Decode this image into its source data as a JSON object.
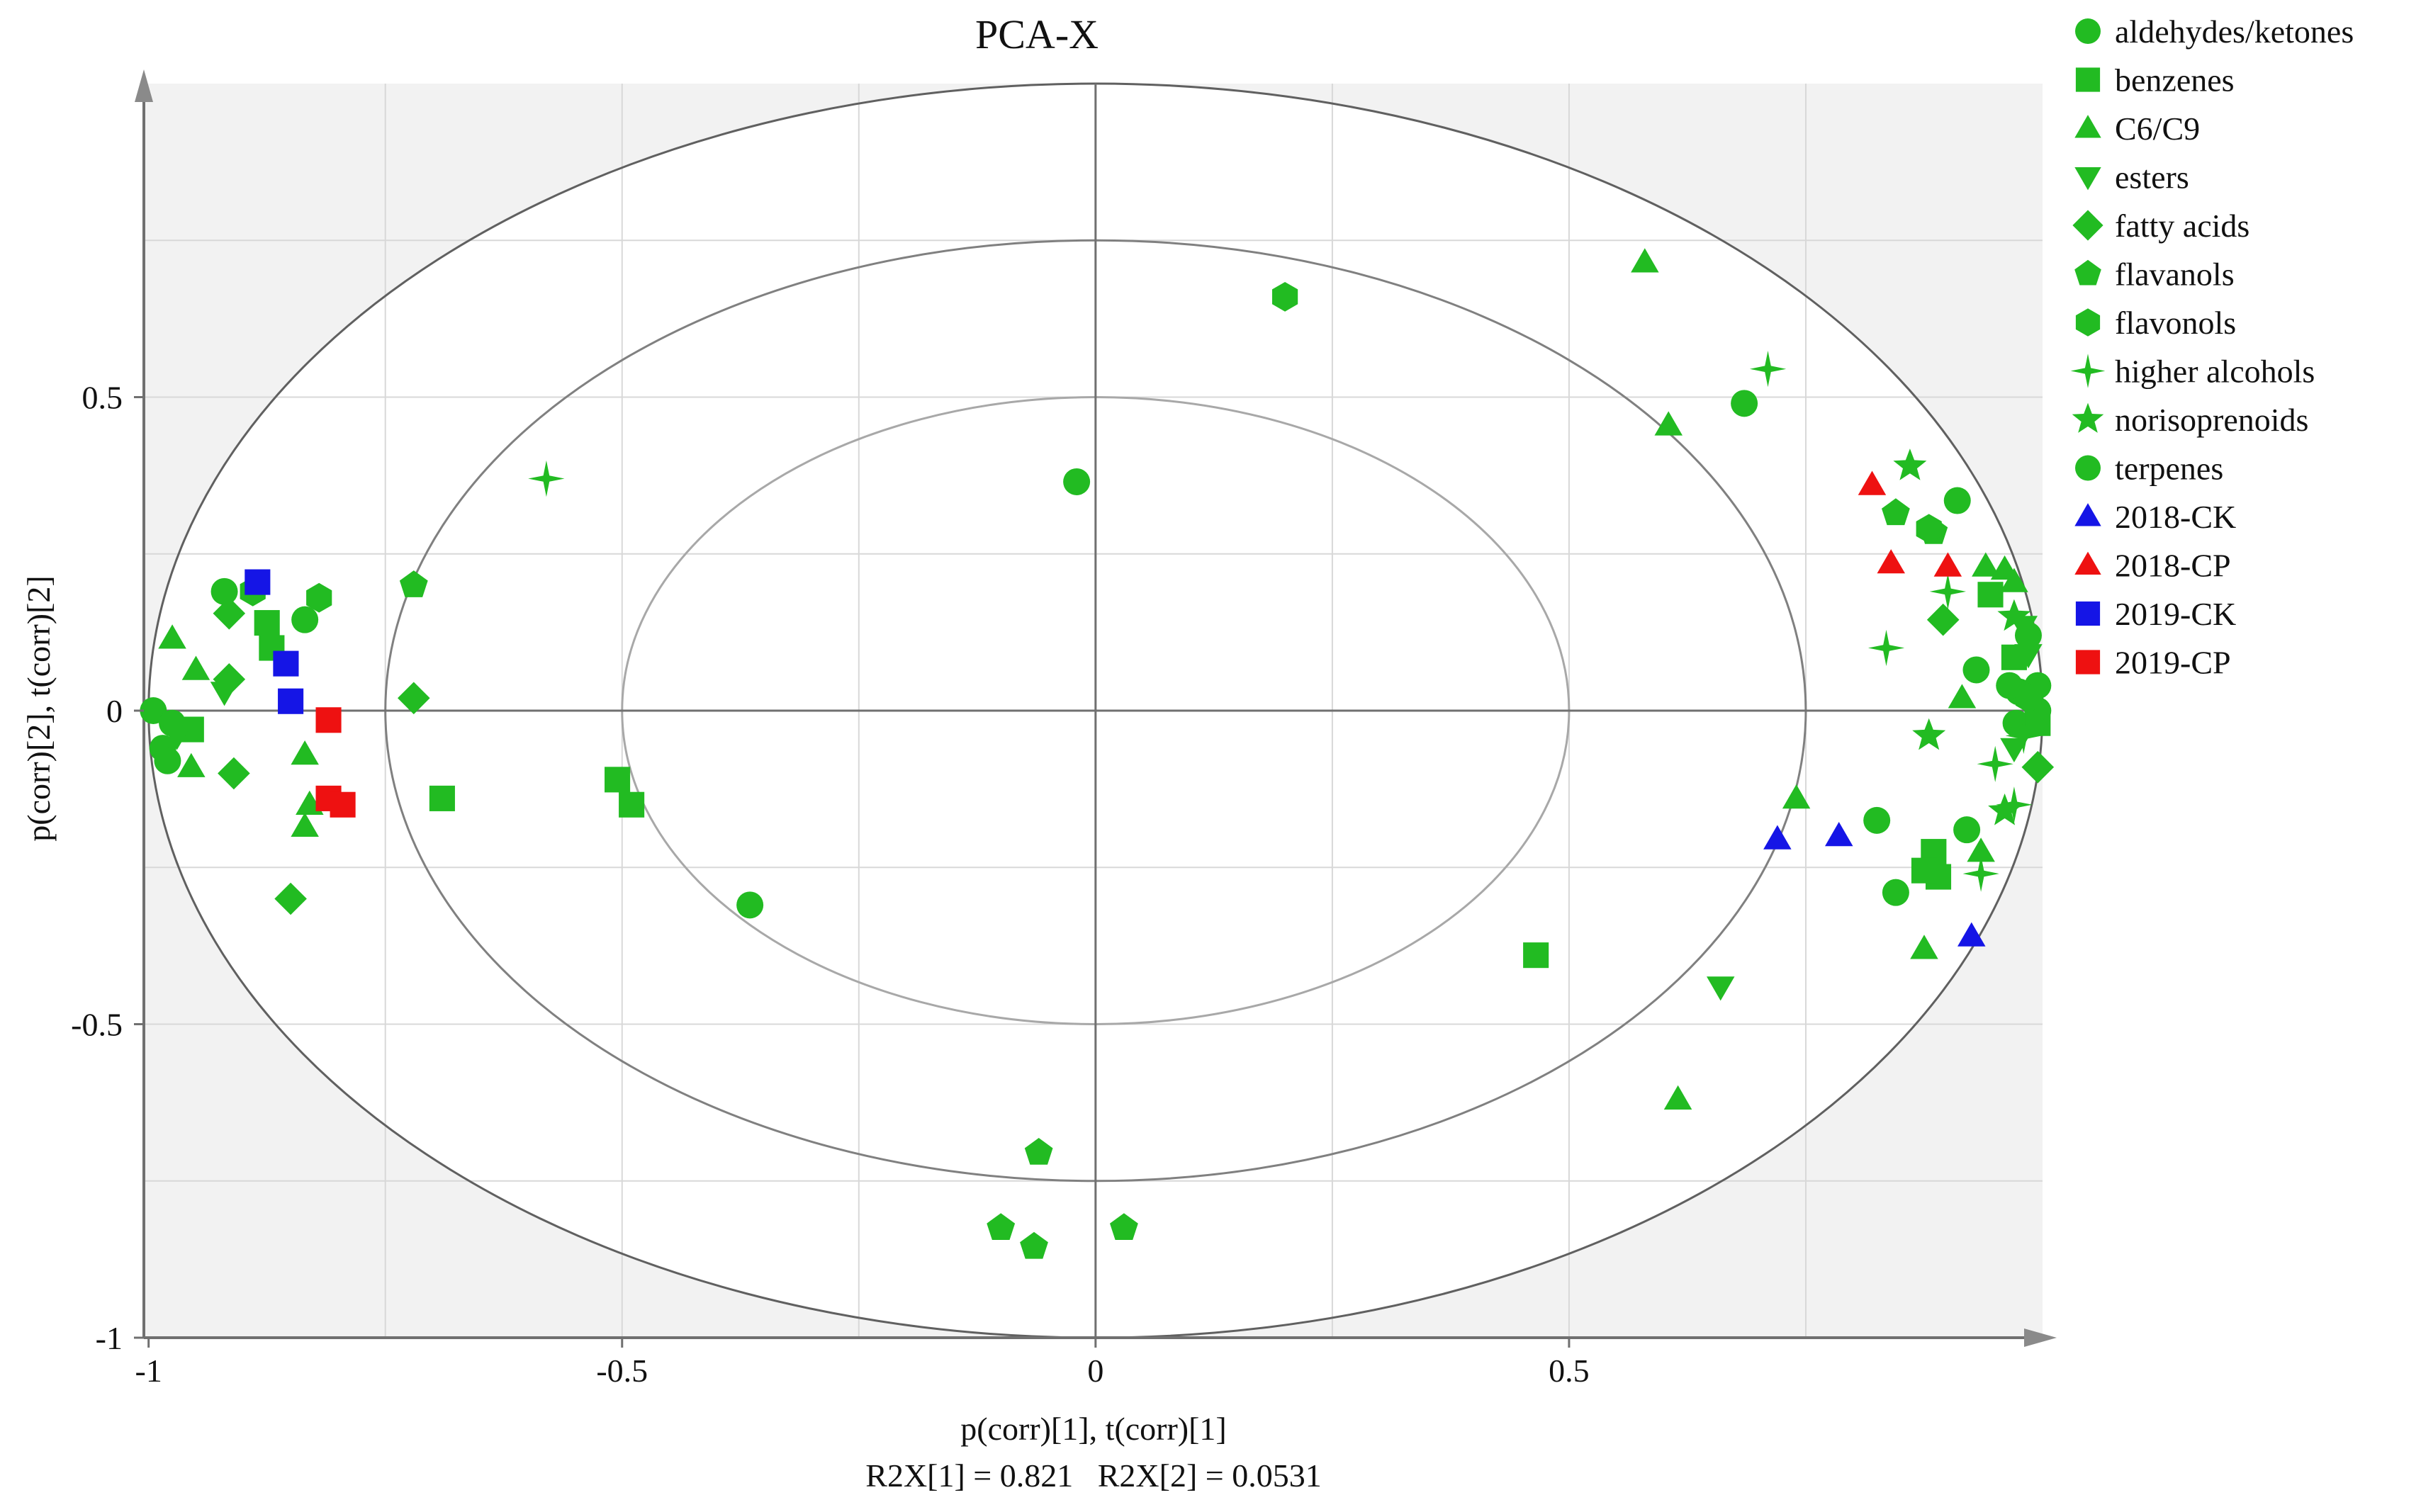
{
  "chart_data": {
    "type": "scatter",
    "title": "PCA-X",
    "xlabel": "p(corr)[1], t(corr)[1]",
    "ylabel": "p(corr)[2], t(corr)[2]",
    "footnote": "R2X[1] = 0.821   R2X[2] = 0.0531",
    "xlim": [
      -1.005,
      1.0
    ],
    "ylim": [
      -1.0,
      1.0
    ],
    "xticks": [
      -1,
      -0.5,
      0,
      0.5
    ],
    "xtick_labels": [
      "-1",
      "-0.5",
      "0",
      "0.5"
    ],
    "yticks": [
      -1,
      -0.5,
      0,
      0.5
    ],
    "ytick_labels": [
      "-1",
      "-0.5",
      "0",
      "0.5"
    ],
    "grid_x": [
      -0.75,
      -0.5,
      -0.25,
      0.25,
      0.5,
      0.75
    ],
    "grid_y": [
      -0.75,
      -0.5,
      -0.25,
      0.25,
      0.5,
      0.75
    ],
    "ellipses": [
      {
        "rx": 1.0,
        "ry": 1.0,
        "color": "#606060"
      },
      {
        "rx": 0.75,
        "ry": 0.75,
        "color": "#808080"
      },
      {
        "rx": 0.5,
        "ry": 0.5,
        "color": "#a8a8a8"
      }
    ],
    "colors": {
      "variables": "#22bb22",
      "ck": "#1515e6",
      "cp": "#ee1111",
      "axis": "#707070",
      "plot_bg": "#f2f2f2"
    },
    "series": [
      {
        "name": "aldehydes/ketones",
        "marker": "circle",
        "color": "#22bb22",
        "points": [
          [
            -0.985,
            -0.06
          ],
          [
            -0.98,
            -0.08
          ],
          [
            -0.835,
            0.145
          ],
          [
            -0.92,
            0.19
          ],
          [
            0.685,
            0.49
          ],
          [
            0.91,
            0.335
          ],
          [
            0.93,
            0.065
          ],
          [
            0.92,
            -0.19
          ],
          [
            0.985,
            0.12
          ],
          [
            0.975,
            0.03
          ],
          [
            0.972,
            -0.02
          ],
          [
            0.995,
            0.04
          ],
          [
            0.995,
            0.0
          ],
          [
            -0.995,
            0.0
          ],
          [
            -0.975,
            -0.02
          ]
        ]
      },
      {
        "name": "benzenes",
        "marker": "square",
        "color": "#22bb22",
        "points": [
          [
            -0.955,
            -0.03
          ],
          [
            -0.875,
            0.14
          ],
          [
            -0.87,
            0.1
          ],
          [
            -0.69,
            -0.14
          ],
          [
            -0.505,
            -0.11
          ],
          [
            -0.49,
            -0.15
          ],
          [
            0.465,
            -0.39
          ],
          [
            0.885,
            -0.225
          ],
          [
            0.89,
            -0.265
          ],
          [
            0.875,
            -0.255
          ],
          [
            0.945,
            0.185
          ],
          [
            0.97,
            0.085
          ],
          [
            0.995,
            -0.02
          ]
        ]
      },
      {
        "name": "C6/C9",
        "marker": "triangle-up",
        "color": "#22bb22",
        "points": [
          [
            -0.975,
            0.115
          ],
          [
            -0.955,
            -0.09
          ],
          [
            -0.95,
            0.065
          ],
          [
            -0.835,
            -0.07
          ],
          [
            -0.835,
            -0.185
          ],
          [
            -0.83,
            -0.15
          ],
          [
            0.58,
            0.715
          ],
          [
            0.605,
            0.455
          ],
          [
            0.615,
            -0.62
          ],
          [
            0.74,
            -0.14
          ],
          [
            0.875,
            -0.38
          ],
          [
            0.915,
            0.02
          ],
          [
            0.94,
            0.23
          ],
          [
            0.96,
            0.225
          ],
          [
            0.97,
            0.205
          ],
          [
            0.935,
            -0.225
          ]
        ]
      },
      {
        "name": "esters",
        "marker": "triangle-down",
        "color": "#22bb22",
        "points": [
          [
            -0.97,
            -0.04
          ],
          [
            -0.92,
            0.03
          ],
          [
            0.66,
            -0.44
          ],
          [
            0.97,
            -0.06
          ],
          [
            0.98,
            0.135
          ],
          [
            0.985,
            0.09
          ]
        ]
      },
      {
        "name": "fatty acids",
        "marker": "diamond",
        "color": "#22bb22",
        "points": [
          [
            -0.91,
            -0.1
          ],
          [
            -0.915,
            0.05
          ],
          [
            -0.915,
            0.155
          ],
          [
            -0.85,
            -0.3
          ],
          [
            -0.72,
            0.02
          ],
          [
            0.895,
            0.145
          ],
          [
            0.995,
            -0.09
          ]
        ]
      },
      {
        "name": "flavanols",
        "marker": "pentagon",
        "color": "#22bb22",
        "points": [
          [
            -0.72,
            0.2
          ],
          [
            -0.06,
            -0.705
          ],
          [
            -0.1,
            -0.825
          ],
          [
            -0.065,
            -0.855
          ],
          [
            0.03,
            -0.825
          ],
          [
            0.845,
            0.315
          ],
          [
            0.885,
            0.285
          ]
        ]
      },
      {
        "name": "flavonols",
        "marker": "hexagon",
        "color": "#22bb22",
        "points": [
          [
            -0.82,
            0.18
          ],
          [
            -0.89,
            0.19
          ],
          [
            0.2,
            0.66
          ],
          [
            0.88,
            0.29
          ],
          [
            0.985,
            0.02
          ]
        ]
      },
      {
        "name": "higher alcohols",
        "marker": "star4",
        "color": "#22bb22",
        "points": [
          [
            -0.58,
            0.37
          ],
          [
            0.71,
            0.545
          ],
          [
            0.835,
            0.1
          ],
          [
            0.9,
            0.19
          ],
          [
            0.935,
            -0.26
          ],
          [
            0.95,
            -0.085
          ],
          [
            0.97,
            -0.15
          ],
          [
            0.98,
            -0.04
          ]
        ]
      },
      {
        "name": "norisoprenoids",
        "marker": "star5",
        "color": "#22bb22",
        "points": [
          [
            0.86,
            0.39
          ],
          [
            0.88,
            -0.04
          ],
          [
            0.97,
            0.15
          ],
          [
            0.96,
            -0.16
          ]
        ]
      },
      {
        "name": "terpenes",
        "marker": "circle",
        "color": "#22bb22",
        "points": [
          [
            -0.02,
            0.365
          ],
          [
            -0.365,
            -0.31
          ],
          [
            0.825,
            -0.175
          ],
          [
            0.845,
            -0.29
          ],
          [
            0.965,
            0.04
          ]
        ]
      },
      {
        "name": "2018-CK",
        "marker": "triangle-up",
        "color": "#1515e6",
        "points": [
          [
            0.72,
            -0.205
          ],
          [
            0.785,
            -0.2
          ],
          [
            0.925,
            -0.36
          ]
        ]
      },
      {
        "name": "2018-CP",
        "marker": "triangle-up",
        "color": "#ee1111",
        "points": [
          [
            0.82,
            0.36
          ],
          [
            0.84,
            0.235
          ],
          [
            0.9,
            0.23
          ]
        ]
      },
      {
        "name": "2019-CK",
        "marker": "square",
        "color": "#1515e6",
        "points": [
          [
            -0.885,
            0.205
          ],
          [
            -0.855,
            0.075
          ],
          [
            -0.85,
            0.015
          ]
        ]
      },
      {
        "name": "2019-CP",
        "marker": "square",
        "color": "#ee1111",
        "points": [
          [
            -0.81,
            -0.015
          ],
          [
            -0.81,
            -0.14
          ],
          [
            -0.795,
            -0.15
          ]
        ]
      }
    ],
    "legend": [
      {
        "label": "aldehydes/ketones",
        "marker": "circle",
        "color": "#22bb22"
      },
      {
        "label": "benzenes",
        "marker": "square",
        "color": "#22bb22"
      },
      {
        "label": "C6/C9",
        "marker": "triangle-up",
        "color": "#22bb22"
      },
      {
        "label": "esters",
        "marker": "triangle-down",
        "color": "#22bb22"
      },
      {
        "label": "fatty acids",
        "marker": "diamond",
        "color": "#22bb22"
      },
      {
        "label": "flavanols",
        "marker": "pentagon",
        "color": "#22bb22"
      },
      {
        "label": "flavonols",
        "marker": "hexagon",
        "color": "#22bb22"
      },
      {
        "label": "higher alcohols",
        "marker": "star4",
        "color": "#22bb22"
      },
      {
        "label": "norisoprenoids",
        "marker": "star5",
        "color": "#22bb22"
      },
      {
        "label": "terpenes",
        "marker": "circle",
        "color": "#22bb22"
      },
      {
        "label": "2018-CK",
        "marker": "triangle-up",
        "color": "#1515e6"
      },
      {
        "label": "2018-CP",
        "marker": "triangle-up",
        "color": "#ee1111"
      },
      {
        "label": "2019-CK",
        "marker": "square",
        "color": "#1515e6"
      },
      {
        "label": "2019-CP",
        "marker": "square",
        "color": "#ee1111"
      }
    ]
  }
}
